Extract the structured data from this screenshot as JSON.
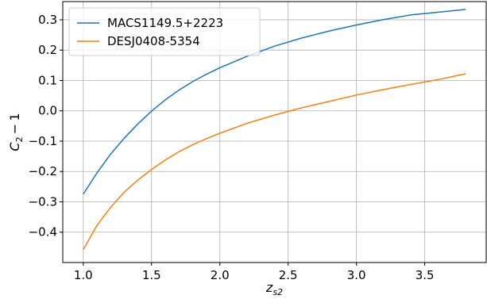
{
  "chart_data": {
    "type": "line",
    "x": [
      1.0,
      1.1,
      1.2,
      1.3,
      1.4,
      1.5,
      1.6,
      1.7,
      1.8,
      1.9,
      2.0,
      2.2,
      2.4,
      2.6,
      2.8,
      3.0,
      3.2,
      3.4,
      3.6,
      3.8
    ],
    "series": [
      {
        "name": "MACS1149.5+2223",
        "color": "#1f77b4",
        "values": [
          -0.275,
          -0.205,
          -0.143,
          -0.09,
          -0.043,
          -0.001,
          0.036,
          0.068,
          0.096,
          0.12,
          0.142,
          0.18,
          0.213,
          0.24,
          0.263,
          0.283,
          0.301,
          0.316,
          0.325,
          0.334
        ]
      },
      {
        "name": "DESJ0408-5354",
        "color": "#ff7f0e",
        "values": [
          -0.457,
          -0.378,
          -0.318,
          -0.268,
          -0.228,
          -0.193,
          -0.162,
          -0.135,
          -0.112,
          -0.092,
          -0.074,
          -0.041,
          -0.014,
          0.01,
          0.031,
          0.052,
          0.07,
          0.087,
          0.103,
          0.122
        ]
      }
    ],
    "xlim": [
      0.85,
      3.95
    ],
    "ylim": [
      -0.5,
      0.36
    ],
    "xticks": [
      "1.0",
      "1.5",
      "2.0",
      "2.5",
      "3.0",
      "3.5"
    ],
    "yticks": [
      "0.3",
      "0.2",
      "0.1",
      "0.0",
      "−0.1",
      "−0.2",
      "−0.3",
      "−0.4"
    ],
    "xlabel": "z",
    "xlabel_sub": "s2",
    "ylabel": "C",
    "ylabel_sub": "2",
    "ylabel_suffix": " − 1",
    "grid": true,
    "legend_position": "top-left"
  }
}
